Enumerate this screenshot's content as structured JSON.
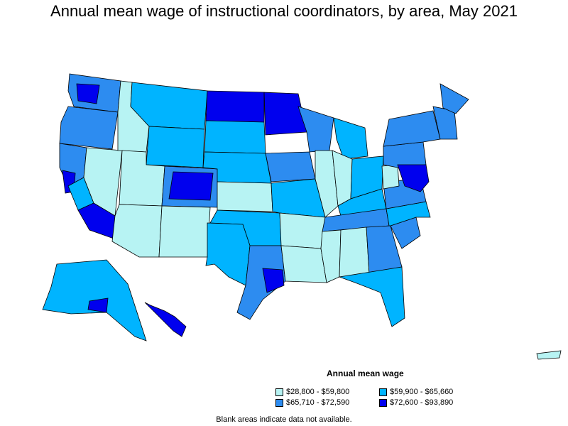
{
  "title": "Annual mean wage of instructional coordinators, by area, May 2021",
  "legend": {
    "title": "Annual mean wage",
    "items": [
      {
        "label": "$28,800 - $59,800",
        "color": "#b7f3f3"
      },
      {
        "label": "$59,900 - $65,660",
        "color": "#00b4ff"
      },
      {
        "label": "$65,710 - $72,590",
        "color": "#2d8cf0"
      },
      {
        "label": "$72,600 - $93,890",
        "color": "#0000ee"
      }
    ]
  },
  "footnote": "Blank areas indicate data not available.",
  "regions": [
    {
      "id": "washington",
      "cls": 2
    },
    {
      "id": "seattle",
      "cls": 3
    },
    {
      "id": "oregon",
      "cls": 2
    },
    {
      "id": "california-north",
      "cls": 2
    },
    {
      "id": "bay-area",
      "cls": 3
    },
    {
      "id": "california-central",
      "cls": 1
    },
    {
      "id": "southern-california",
      "cls": 3
    },
    {
      "id": "nevada",
      "cls": 0
    },
    {
      "id": "idaho",
      "cls": 0
    },
    {
      "id": "montana",
      "cls": 1
    },
    {
      "id": "wyoming",
      "cls": 1
    },
    {
      "id": "utah",
      "cls": 0
    },
    {
      "id": "colorado",
      "cls": 2
    },
    {
      "id": "denver",
      "cls": 3
    },
    {
      "id": "arizona",
      "cls": 0
    },
    {
      "id": "new-mexico",
      "cls": 0
    },
    {
      "id": "north-dakota",
      "cls": 3
    },
    {
      "id": "south-dakota",
      "cls": 1
    },
    {
      "id": "nebraska",
      "cls": 1
    },
    {
      "id": "kansas",
      "cls": 0
    },
    {
      "id": "oklahoma",
      "cls": 1
    },
    {
      "id": "texas-west",
      "cls": 1
    },
    {
      "id": "texas-east",
      "cls": 2
    },
    {
      "id": "houston",
      "cls": 3
    },
    {
      "id": "minnesota",
      "cls": 3
    },
    {
      "id": "iowa",
      "cls": 2
    },
    {
      "id": "missouri",
      "cls": 1
    },
    {
      "id": "arkansas",
      "cls": 0
    },
    {
      "id": "louisiana",
      "cls": 0
    },
    {
      "id": "wisconsin",
      "cls": 2
    },
    {
      "id": "illinois",
      "cls": 0
    },
    {
      "id": "michigan",
      "cls": 1
    },
    {
      "id": "indiana",
      "cls": 0
    },
    {
      "id": "ohio",
      "cls": 1
    },
    {
      "id": "kentucky",
      "cls": 1
    },
    {
      "id": "tennessee",
      "cls": 2
    },
    {
      "id": "mississippi",
      "cls": 0
    },
    {
      "id": "alabama",
      "cls": 0
    },
    {
      "id": "georgia",
      "cls": 2
    },
    {
      "id": "florida",
      "cls": 1
    },
    {
      "id": "south-carolina",
      "cls": 2
    },
    {
      "id": "north-carolina",
      "cls": 1
    },
    {
      "id": "virginia",
      "cls": 2
    },
    {
      "id": "west-virginia",
      "cls": 0
    },
    {
      "id": "pennsylvania",
      "cls": 2
    },
    {
      "id": "new-york",
      "cls": 2
    },
    {
      "id": "mid-atlantic",
      "cls": 3
    },
    {
      "id": "new-england",
      "cls": 2
    },
    {
      "id": "maine",
      "cls": 2
    },
    {
      "id": "alaska",
      "cls": 1
    },
    {
      "id": "anchorage",
      "cls": 3
    },
    {
      "id": "hawaii",
      "cls": 3
    },
    {
      "id": "puerto-rico",
      "cls": 0
    }
  ]
}
